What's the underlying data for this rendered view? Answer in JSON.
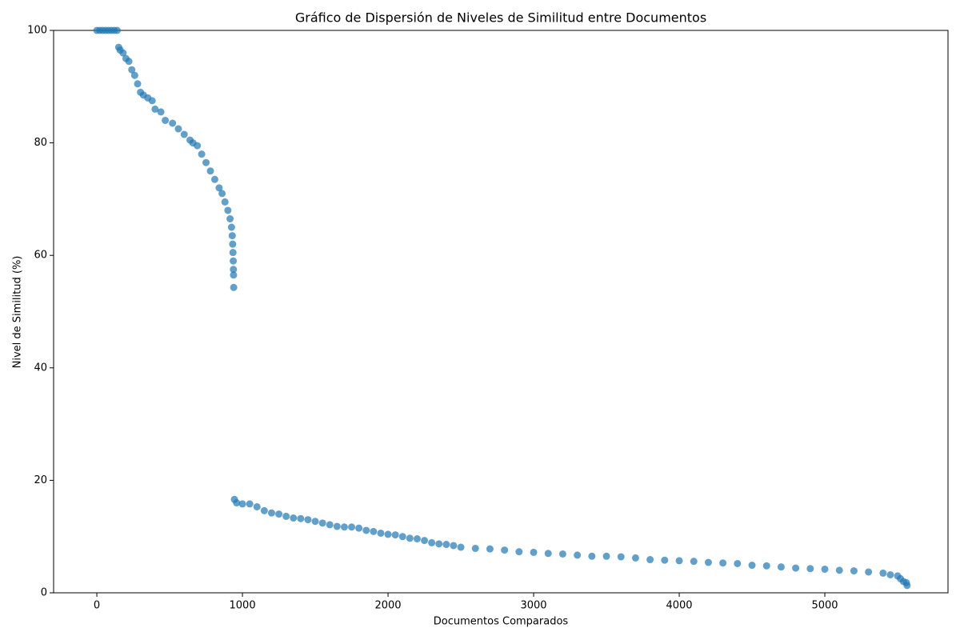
{
  "chart_data": {
    "type": "scatter",
    "title": "Gráfico de Dispersión de Niveles de Similitud entre Documentos",
    "x_label": "Documentos Comparados",
    "y_label": "Nivel de Similitud (%)",
    "color": "#1f77b4",
    "xlim": [
      -297,
      5846
    ],
    "ylim": [
      0,
      100
    ],
    "xticks": [
      0,
      1000,
      2000,
      3000,
      4000,
      5000
    ],
    "yticks": [
      0,
      20,
      40,
      60,
      80,
      100
    ],
    "x": [
      0,
      20,
      40,
      60,
      80,
      100,
      120,
      140,
      150,
      160,
      180,
      200,
      220,
      240,
      260,
      280,
      300,
      320,
      350,
      380,
      400,
      440,
      470,
      520,
      560,
      600,
      640,
      660,
      690,
      720,
      750,
      780,
      810,
      840,
      860,
      880,
      900,
      915,
      925,
      930,
      933,
      935,
      937,
      938,
      939,
      940,
      945,
      960,
      1000,
      1050,
      1100,
      1150,
      1200,
      1250,
      1300,
      1350,
      1400,
      1450,
      1500,
      1550,
      1600,
      1650,
      1700,
      1750,
      1800,
      1850,
      1900,
      1950,
      2000,
      2050,
      2100,
      2150,
      2200,
      2250,
      2300,
      2350,
      2400,
      2450,
      2500,
      2600,
      2700,
      2800,
      2900,
      3000,
      3100,
      3200,
      3300,
      3400,
      3500,
      3600,
      3700,
      3800,
      3900,
      4000,
      4100,
      4200,
      4300,
      4400,
      4500,
      4600,
      4700,
      4800,
      4900,
      5000,
      5100,
      5200,
      5300,
      5400,
      5450,
      5500,
      5520,
      5540,
      5560,
      5565
    ],
    "values": [
      100,
      100,
      100,
      100,
      100,
      100,
      100,
      100,
      97,
      96.5,
      96,
      95,
      94.5,
      93,
      92,
      90.5,
      89,
      88.5,
      88,
      87.5,
      86,
      85.5,
      84,
      83.5,
      82.5,
      81.5,
      80.5,
      80,
      79.5,
      78,
      76.5,
      75,
      73.5,
      72,
      71,
      69.5,
      68,
      66.5,
      65,
      63.5,
      62,
      60.5,
      59,
      57.5,
      56.5,
      54.3,
      16.6,
      16,
      15.8,
      15.8,
      15.3,
      14.6,
      14.2,
      14,
      13.6,
      13.3,
      13.2,
      13,
      12.7,
      12.4,
      12.1,
      11.8,
      11.7,
      11.7,
      11.5,
      11.1,
      10.9,
      10.6,
      10.4,
      10.3,
      10,
      9.7,
      9.6,
      9.3,
      8.9,
      8.7,
      8.6,
      8.4,
      8.1,
      7.9,
      7.8,
      7.6,
      7.3,
      7.2,
      7,
      6.9,
      6.7,
      6.5,
      6.5,
      6.4,
      6.2,
      5.9,
      5.8,
      5.7,
      5.6,
      5.4,
      5.3,
      5.2,
      4.9,
      4.8,
      4.6,
      4.4,
      4.3,
      4.2,
      4,
      3.9,
      3.7,
      3.5,
      3.2,
      3.0,
      2.5,
      2,
      1.8,
      1.3
    ]
  }
}
